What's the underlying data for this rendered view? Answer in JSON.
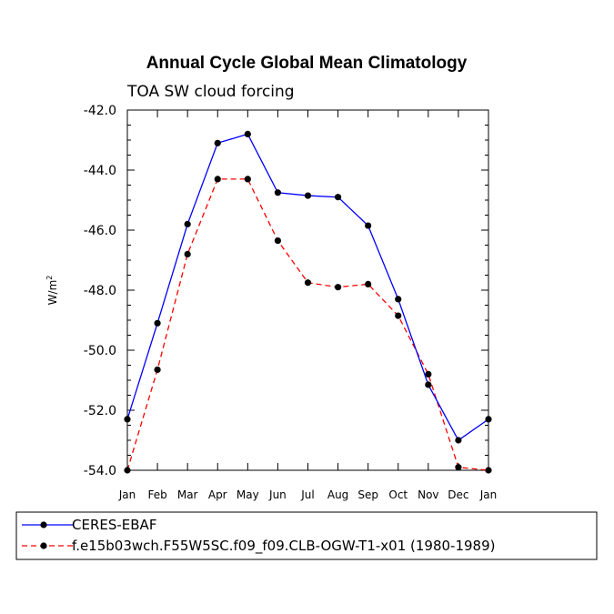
{
  "chart_data": {
    "type": "line",
    "title": "Annual Cycle Global Mean Climatology",
    "subtitle": "TOA SW cloud forcing",
    "ylabel": "W/m",
    "ylabel_sup": "2",
    "xlabel": "",
    "ylim": [
      -54.0,
      -42.0
    ],
    "yticks": [
      "-42.0",
      "-44.0",
      "-46.0",
      "-48.0",
      "-50.0",
      "-52.0",
      "-54.0"
    ],
    "categories": [
      "Jan",
      "Feb",
      "Mar",
      "Apr",
      "May",
      "Jun",
      "Jul",
      "Aug",
      "Sep",
      "Oct",
      "Nov",
      "Dec",
      "Jan"
    ],
    "series": [
      {
        "name": "CERES-EBAF",
        "color": "#0000ff",
        "style": "solid",
        "values": [
          -52.3,
          -49.1,
          -45.8,
          -43.1,
          -42.8,
          -44.75,
          -44.85,
          -44.9,
          -45.85,
          -48.3,
          -51.15,
          -53.0,
          -52.3
        ]
      },
      {
        "name": "f.e15b03wch.F55W5SC.f09_f09.CLB-OGW-T1-x01 (1980-1989)",
        "color": "#ff0000",
        "style": "dashed",
        "values": [
          -54.0,
          -50.65,
          -46.8,
          -44.3,
          -44.3,
          -46.35,
          -47.75,
          -47.9,
          -47.8,
          -48.85,
          -50.8,
          -53.9,
          -54.0
        ]
      }
    ]
  }
}
